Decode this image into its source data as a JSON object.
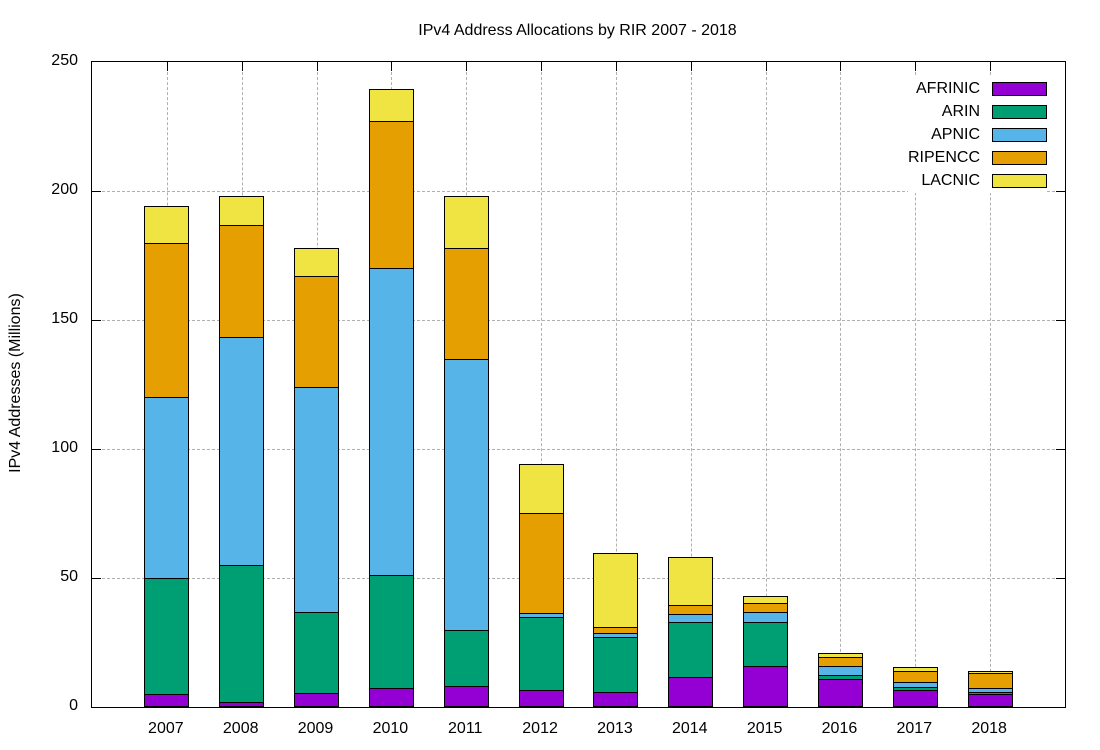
{
  "chart_data": {
    "type": "bar",
    "stacked": true,
    "title": "IPv4 Address Allocations by RIR 2007 - 2018",
    "ylabel": "IPv4 Addresses (Millions)",
    "xlabel": "",
    "categories": [
      "2007",
      "2008",
      "2009",
      "2010",
      "2011",
      "2012",
      "2013",
      "2014",
      "2015",
      "2016",
      "2017",
      "2018"
    ],
    "yticks": [
      0,
      50,
      100,
      150,
      200,
      250
    ],
    "ylim": [
      0,
      250
    ],
    "grid": true,
    "legend_position": "top-right-inside",
    "series": [
      {
        "name": "AFRINIC",
        "color": "#9400d3",
        "values": [
          5,
          2,
          5.5,
          7.5,
          8,
          6.5,
          6,
          11.5,
          16,
          11,
          6.5,
          5
        ]
      },
      {
        "name": "ARIN",
        "color": "#009e73",
        "values": [
          45,
          53,
          31.5,
          43.5,
          22,
          28.5,
          21,
          21.5,
          17,
          1.5,
          1.1,
          0.7
        ]
      },
      {
        "name": "APNIC",
        "color": "#56b4e9",
        "values": [
          70,
          88.5,
          87,
          119,
          105,
          1.5,
          1.5,
          3,
          4,
          3.5,
          2,
          1.8
        ]
      },
      {
        "name": "RIPENCC",
        "color": "#e69f00",
        "values": [
          60,
          43.5,
          43,
          57,
          43,
          38.5,
          2.5,
          3.5,
          3.5,
          3.5,
          4.4,
          5.5
        ]
      },
      {
        "name": "LACNIC",
        "color": "#f0e442",
        "values": [
          14,
          11,
          11,
          12.5,
          20,
          19,
          28.5,
          18.5,
          2.5,
          1.5,
          1.5,
          1
        ]
      }
    ],
    "totals": [
      194,
      198,
      178,
      239.5,
      198,
      94,
      59.5,
      58,
      43,
      21,
      15.5,
      14
    ]
  }
}
